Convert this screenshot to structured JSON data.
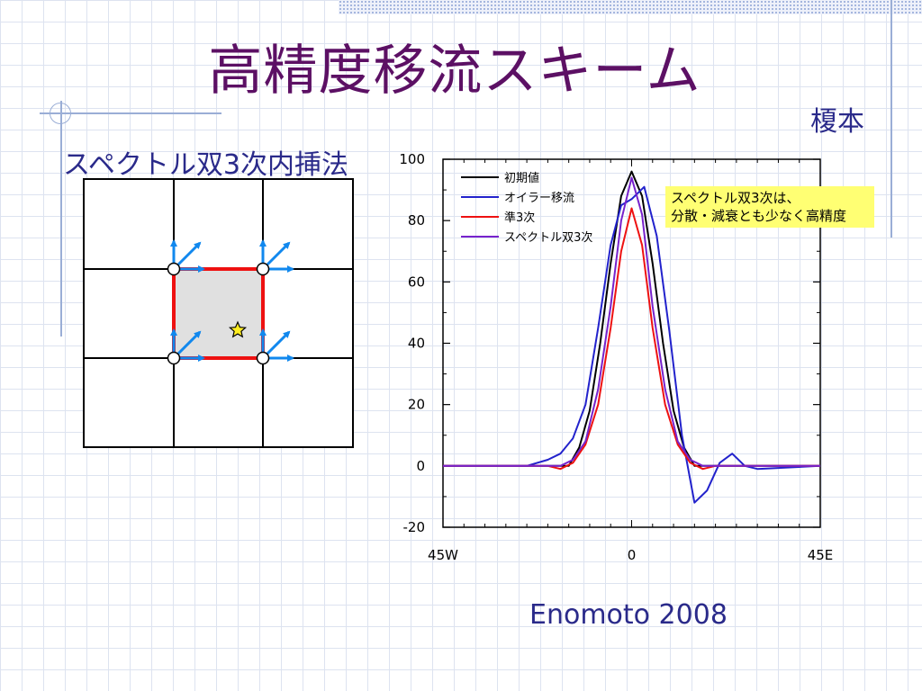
{
  "slide": {
    "title": "高精度移流スキーム",
    "author": "榎本",
    "left_heading": "スペクトル双3次内挿法",
    "citation": "Enomoto 2008",
    "callout_lines": [
      "スペクトル双3次は、",
      "分散・減衰とも少なく高精度"
    ]
  },
  "diagram": {
    "cell_fill": "#e0e0e0",
    "cell_border": "#ee1111",
    "arrow_color": "#1188ee",
    "star_color": "#ffee22"
  },
  "chart_data": {
    "type": "line",
    "x_tick_labels": [
      "45W",
      "0",
      "45E"
    ],
    "xlim": [
      -45,
      45
    ],
    "ylim": [
      -20,
      100
    ],
    "y_ticks": [
      -20,
      0,
      20,
      40,
      60,
      80,
      100
    ],
    "legend_placement": "top-left",
    "series": [
      {
        "name": "初期値",
        "color": "#000000",
        "x": [
          -45,
          -15,
          -12.5,
          -10,
          -7.5,
          -5,
          -2.5,
          0,
          2.5,
          5,
          7.5,
          10,
          12.5,
          15,
          45
        ],
        "y": [
          0,
          0,
          6,
          18,
          40,
          66,
          88,
          96,
          88,
          66,
          40,
          18,
          6,
          0,
          0
        ]
      },
      {
        "name": "オイラー移流",
        "color": "#2222cc",
        "x": [
          -45,
          -30,
          -25,
          -20,
          -17,
          -14,
          -11,
          -8,
          -5,
          -2.5,
          0,
          3,
          6,
          9,
          12,
          15,
          18,
          21,
          24,
          27,
          30,
          45
        ],
        "y": [
          0,
          0,
          0,
          2,
          4,
          9,
          20,
          45,
          72,
          85,
          87,
          91,
          75,
          44,
          10,
          -12,
          -8,
          1,
          4,
          0,
          -1,
          0
        ]
      },
      {
        "name": "準3次",
        "color": "#ee1111",
        "x": [
          -45,
          -20,
          -17,
          -14,
          -11,
          -8,
          -5,
          -2.5,
          0,
          2.5,
          5,
          8,
          11,
          14,
          17,
          20,
          45
        ],
        "y": [
          0,
          0,
          -1,
          1,
          7,
          20,
          45,
          70,
          84,
          72,
          45,
          20,
          7,
          1,
          -1,
          0,
          0
        ]
      },
      {
        "name": "スペクトル双3次",
        "color": "#7722cc",
        "x": [
          -45,
          -20,
          -17,
          -14,
          -11,
          -8,
          -5,
          -2.5,
          0,
          2.5,
          5,
          8,
          11,
          14,
          17,
          20,
          45
        ],
        "y": [
          0,
          0,
          0,
          2,
          8,
          25,
          52,
          80,
          94,
          82,
          52,
          25,
          8,
          2,
          0,
          0,
          0
        ]
      }
    ]
  }
}
